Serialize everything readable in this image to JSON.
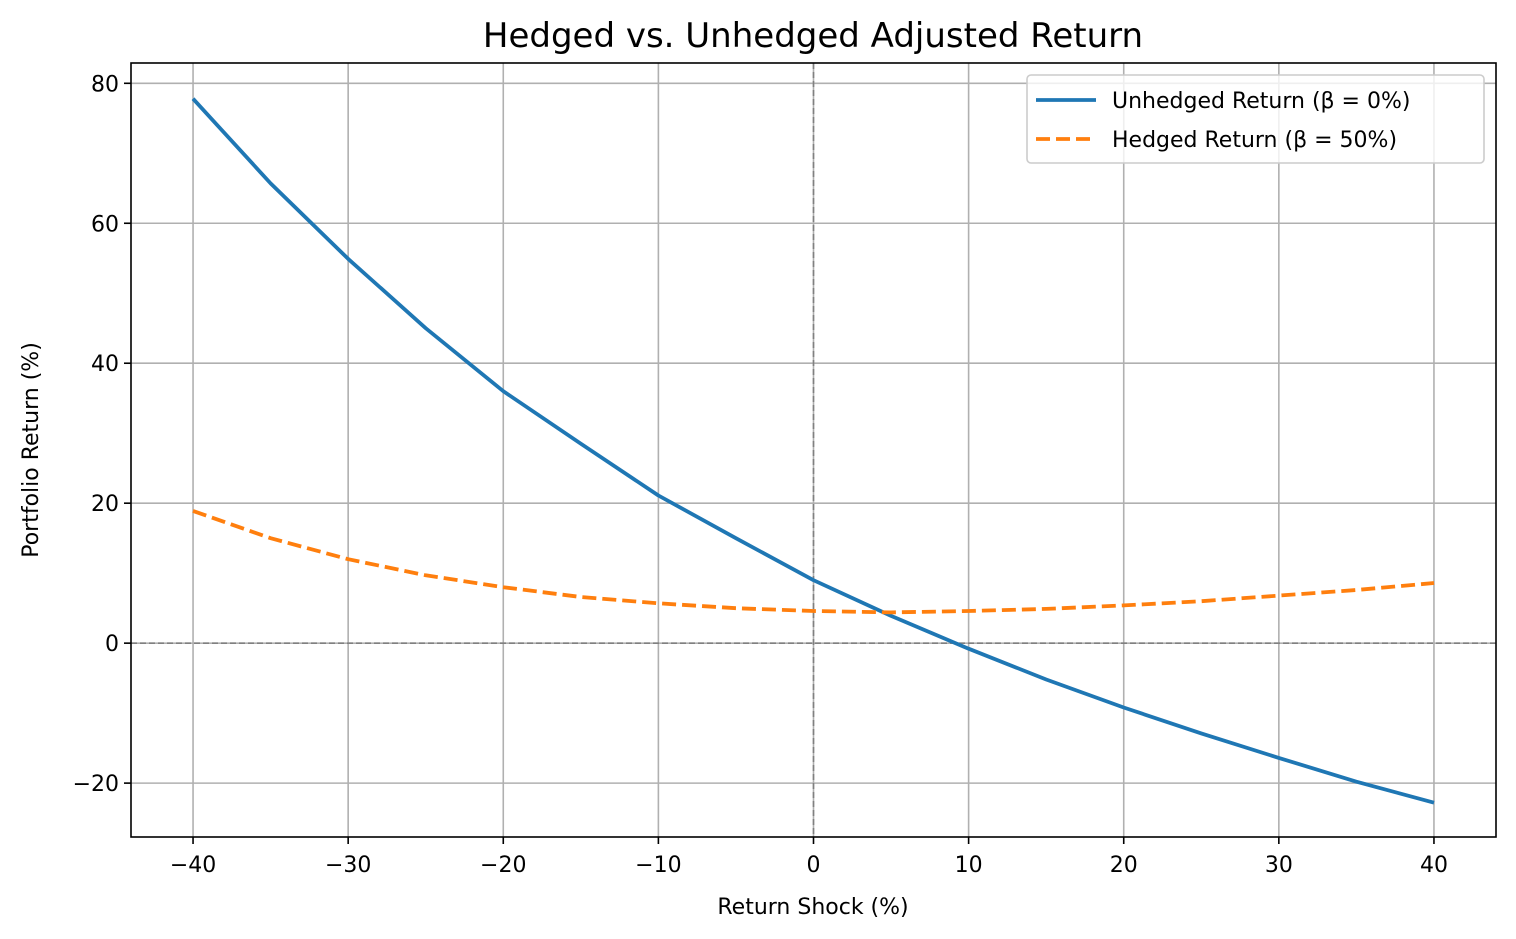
{
  "chart_data": {
    "type": "line",
    "title": "Hedged vs. Unhedged Adjusted Return",
    "xlabel": "Return Shock (%)",
    "ylabel": "Portfolio Return (%)",
    "xlim": [
      -44,
      44
    ],
    "ylim": [
      -27.7,
      82.9
    ],
    "grid": true,
    "legend_position": "top-right",
    "reference_lines": {
      "horizontal_y": 0,
      "vertical_x": 0,
      "color": "#808080",
      "style": "dashed"
    },
    "x_ticks": [
      -40,
      -30,
      -20,
      -10,
      0,
      10,
      20,
      30,
      40
    ],
    "x_tick_labels": [
      "−40",
      "−30",
      "−20",
      "−10",
      "0",
      "10",
      "20",
      "30",
      "40"
    ],
    "y_ticks": [
      -20,
      0,
      20,
      40,
      60,
      80
    ],
    "y_tick_labels": [
      "−20",
      "0",
      "20",
      "40",
      "60",
      "80"
    ],
    "x": [
      -40,
      -35,
      -30,
      -25,
      -20,
      -15,
      -10,
      -5,
      0,
      5,
      10,
      15,
      20,
      25,
      30,
      35,
      40
    ],
    "series": [
      {
        "name": "Unhedged Return (β = 0%)",
        "color": "#1f77b4",
        "style": "solid",
        "values": [
          77.8,
          65.7,
          54.9,
          45.0,
          36.0,
          28.5,
          21.1,
          15.0,
          9.0,
          3.9,
          -0.8,
          -5.2,
          -9.2,
          -12.9,
          -16.4,
          -19.8,
          -22.8
        ]
      },
      {
        "name": "Hedged Return (β = 50%)",
        "color": "#ff7f0e",
        "style": "dashed",
        "values": [
          18.9,
          15.0,
          12.0,
          9.7,
          8.0,
          6.6,
          5.7,
          5.0,
          4.6,
          4.4,
          4.6,
          4.9,
          5.4,
          6.0,
          6.8,
          7.6,
          8.6
        ]
      }
    ]
  }
}
